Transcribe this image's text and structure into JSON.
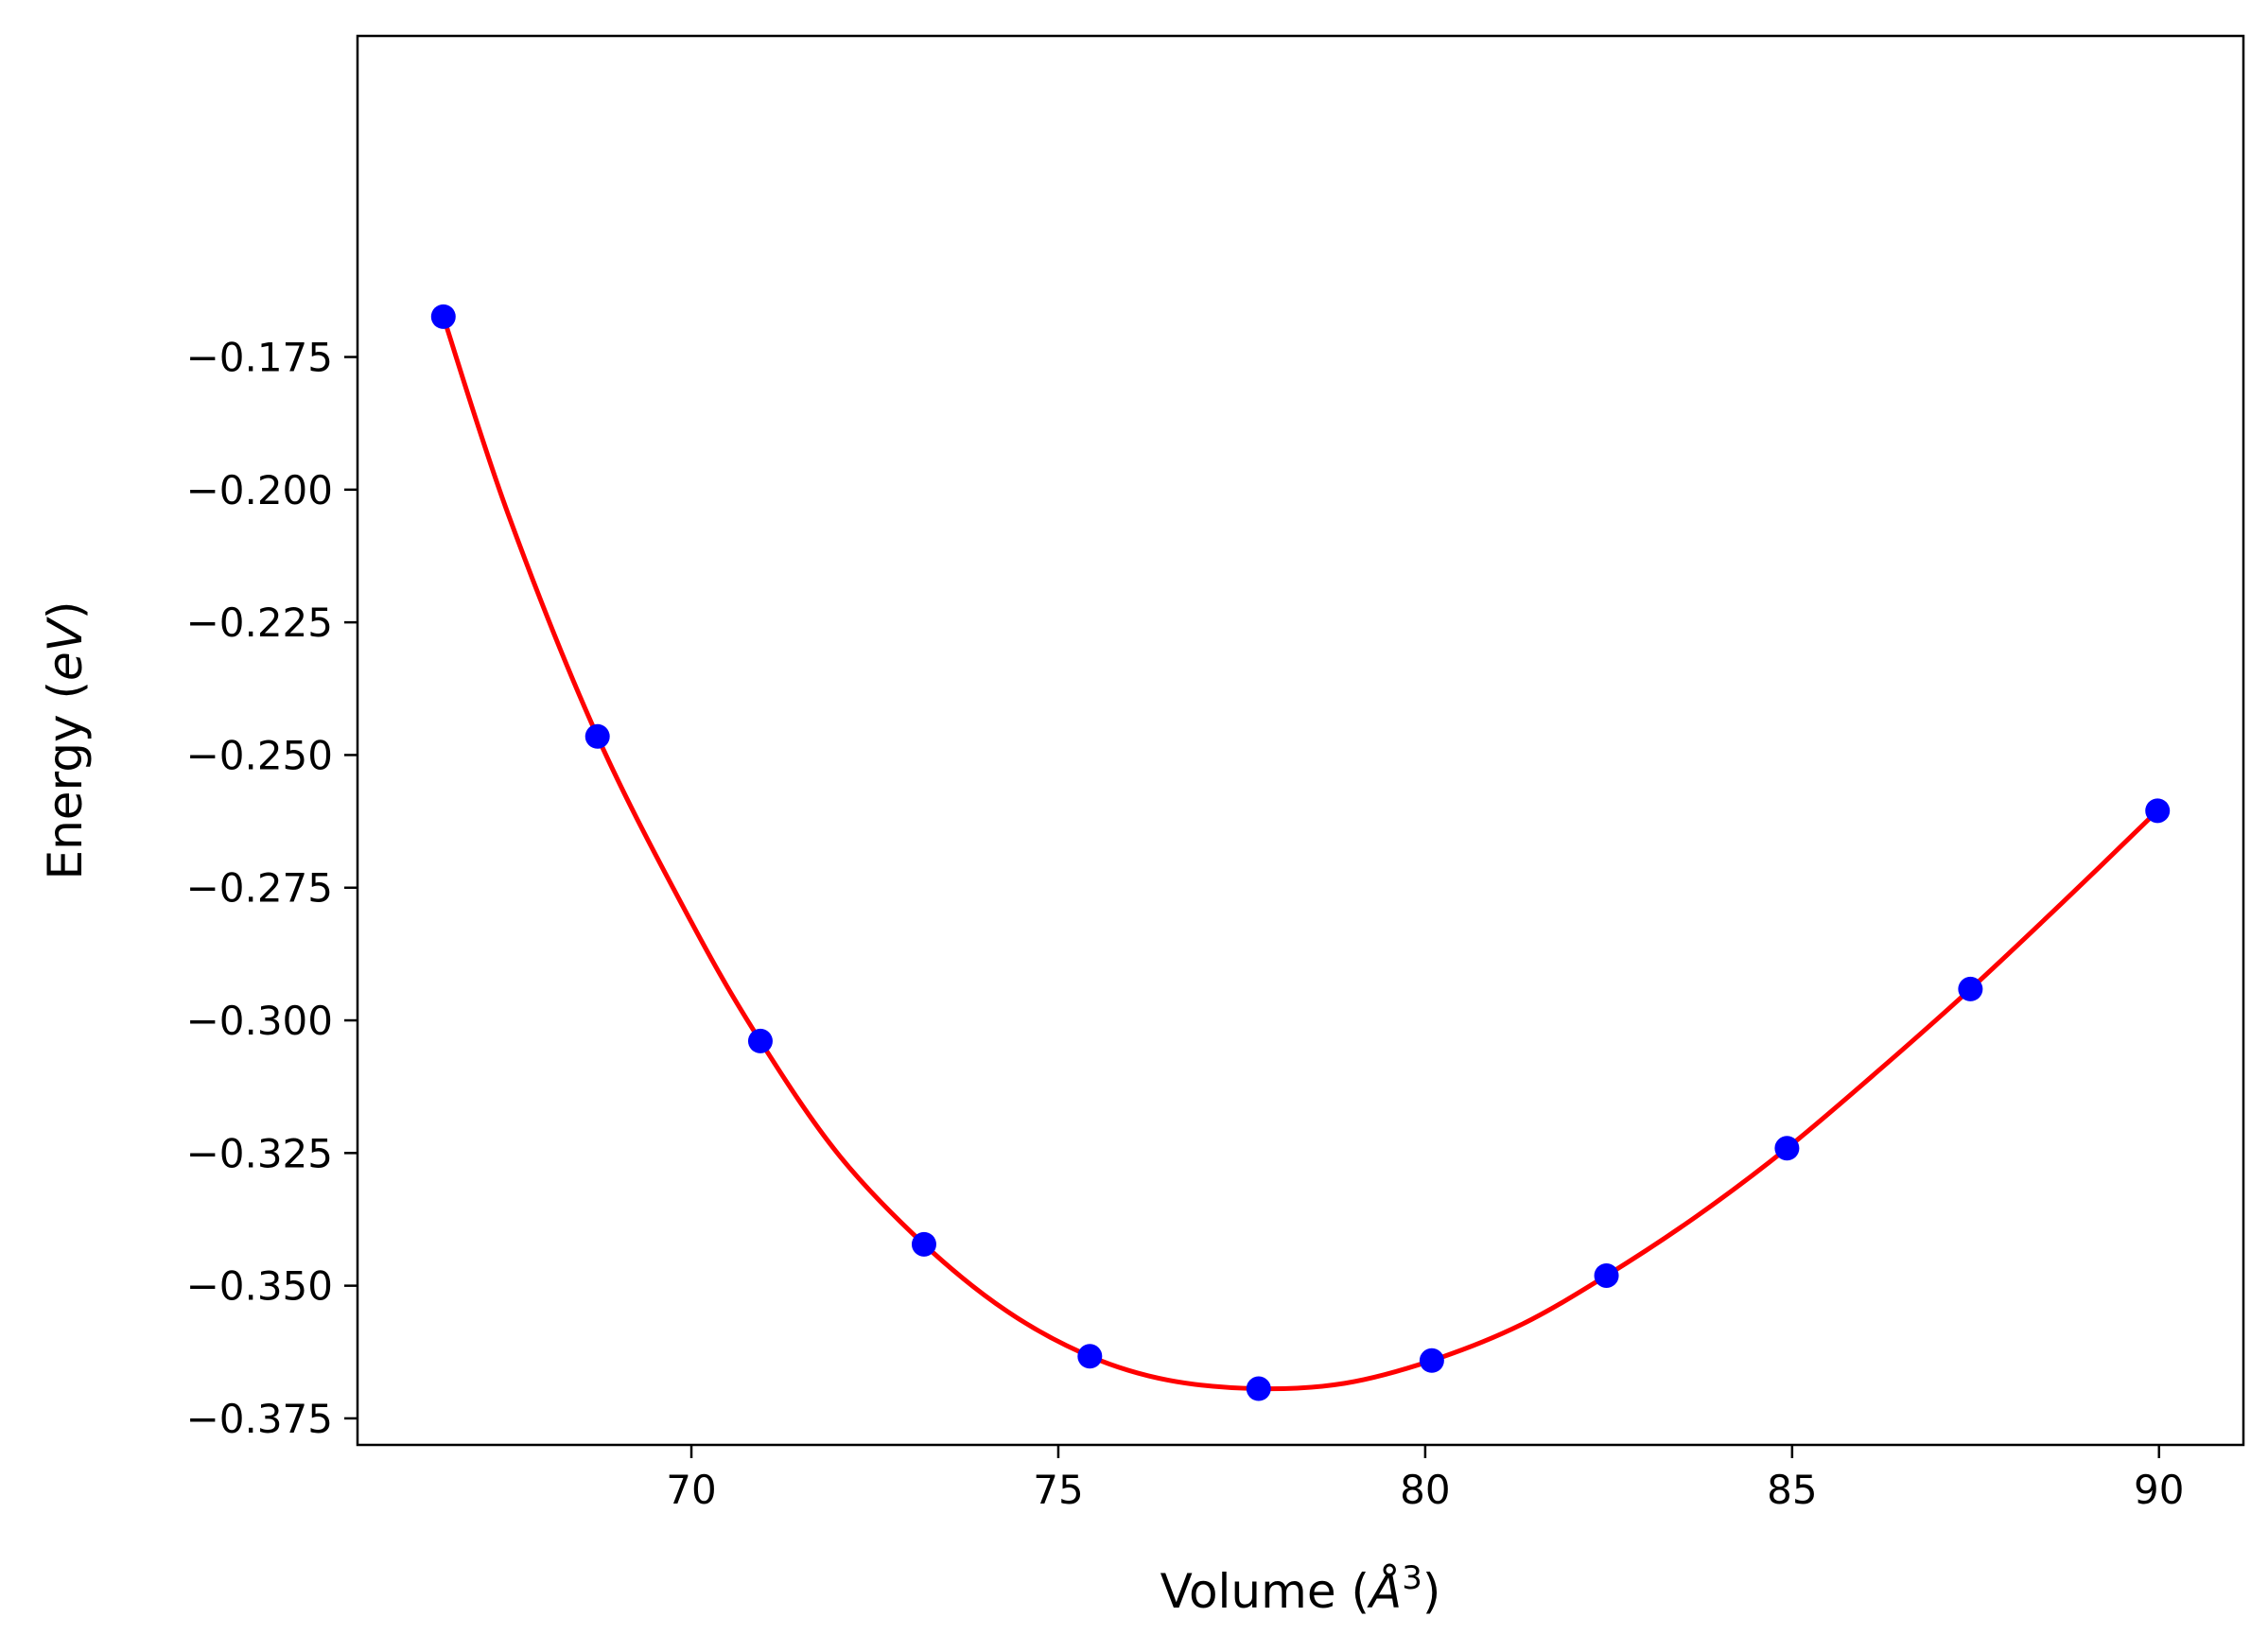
{
  "chart_data": {
    "type": "scatter",
    "xlabel": "Volume (",
    "xlabel_symbol": "Å",
    "xlabel_power": "3",
    "xlabel_close": ")",
    "ylabel": "Energy (",
    "ylabel_symbol": "eV",
    "ylabel_close": ")",
    "xlim": [
      65.45,
      91.15
    ],
    "ylim": [
      -0.38,
      -0.1145
    ],
    "xticks": [
      70,
      75,
      80,
      85,
      90
    ],
    "xtick_labels": [
      "70",
      "75",
      "80",
      "85",
      "90"
    ],
    "yticks": [
      -0.375,
      -0.35,
      -0.325,
      -0.3,
      -0.275,
      -0.25,
      -0.225,
      -0.2,
      -0.175
    ],
    "ytick_labels": [
      "−0.375",
      "−0.350",
      "−0.325",
      "−0.300",
      "−0.275",
      "−0.250",
      "−0.225",
      "−0.200",
      "−0.175"
    ],
    "grid": false,
    "series": [
      {
        "kind": "points",
        "color": "#0000ff",
        "x": [
          66.62,
          68.72,
          70.94,
          73.17,
          75.43,
          77.73,
          80.09,
          82.47,
          84.93,
          87.43,
          89.98
        ],
        "y": [
          -0.1674,
          -0.2465,
          -0.3039,
          -0.3422,
          -0.3633,
          -0.3694,
          -0.3641,
          -0.3481,
          -0.3241,
          -0.2941,
          -0.2605
        ]
      },
      {
        "kind": "fit-line",
        "color": "#ff0000",
        "x": [
          66.62,
          67.5,
          68.72,
          70.0,
          70.94,
          72.0,
          73.17,
          74.3,
          75.43,
          76.5,
          77.73,
          78.9,
          80.09,
          81.3,
          82.47,
          83.7,
          84.93,
          86.2,
          87.43,
          88.7,
          89.98
        ],
        "y": [
          -0.1674,
          -0.2045,
          -0.2465,
          -0.2815,
          -0.3039,
          -0.3252,
          -0.3422,
          -0.3548,
          -0.3633,
          -0.3678,
          -0.3694,
          -0.3684,
          -0.3641,
          -0.3574,
          -0.3481,
          -0.3369,
          -0.3241,
          -0.3092,
          -0.2941,
          -0.2776,
          -0.2605
        ]
      }
    ]
  }
}
